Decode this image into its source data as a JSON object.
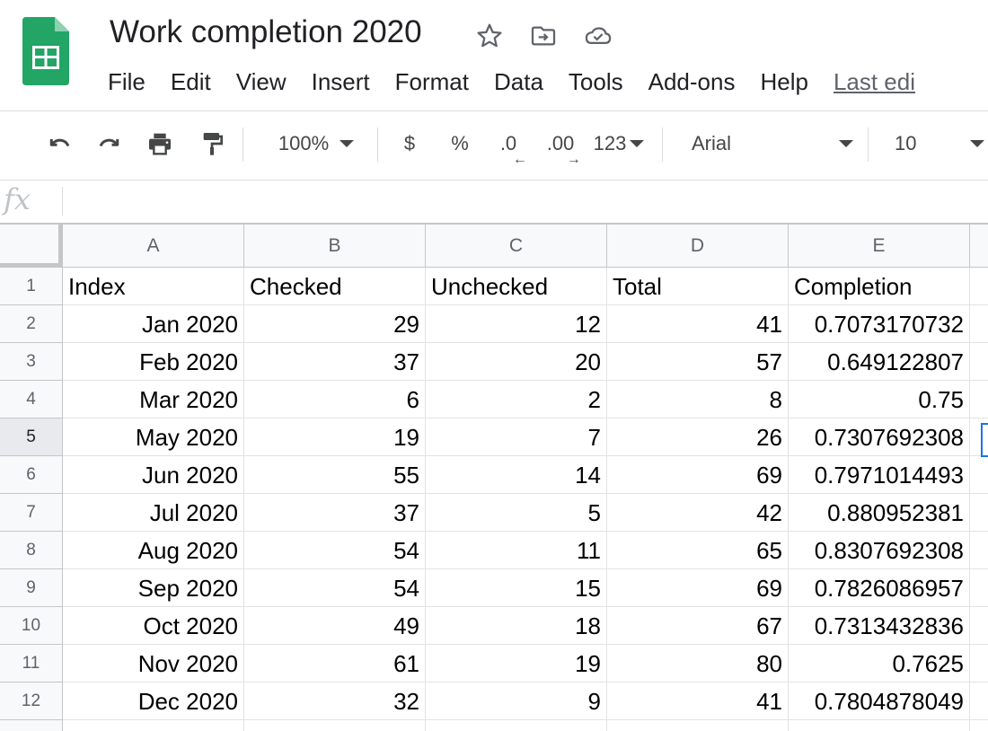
{
  "doc": {
    "title": "Work completion 2020",
    "icons": [
      "sheets-logo",
      "star-icon",
      "move-folder-icon",
      "cloud-saved-icon"
    ]
  },
  "menu": {
    "items": [
      "File",
      "Edit",
      "View",
      "Insert",
      "Format",
      "Data",
      "Tools",
      "Add-ons",
      "Help"
    ],
    "last_edit": "Last edi"
  },
  "toolbar": {
    "zoom": "100%",
    "currency": "$",
    "percent": "%",
    "decimal_decrease": ".0",
    "decimal_increase": ".00",
    "more_formats": "123",
    "font": "Arial",
    "font_size": "10",
    "icons": [
      "undo-icon",
      "redo-icon",
      "print-icon",
      "paint-format-icon"
    ]
  },
  "formula_bar": {
    "label": "fx",
    "value": ""
  },
  "sheet": {
    "columns": [
      "A",
      "B",
      "C",
      "D",
      "E"
    ],
    "row_numbers": [
      "1",
      "2",
      "3",
      "4",
      "5",
      "6",
      "7",
      "8",
      "9",
      "10",
      "11",
      "12"
    ],
    "header": [
      "Index",
      "Checked",
      "Unchecked",
      "Total",
      "Completion"
    ],
    "rows": [
      [
        "Jan 2020",
        "29",
        "12",
        "41",
        "0.7073170732"
      ],
      [
        "Feb 2020",
        "37",
        "20",
        "57",
        "0.649122807"
      ],
      [
        "Mar 2020",
        "6",
        "2",
        "8",
        "0.75"
      ],
      [
        "May 2020",
        "19",
        "7",
        "26",
        "0.7307692308"
      ],
      [
        "Jun 2020",
        "55",
        "14",
        "69",
        "0.7971014493"
      ],
      [
        "Jul 2020",
        "37",
        "5",
        "42",
        "0.880952381"
      ],
      [
        "Aug 2020",
        "54",
        "11",
        "65",
        "0.8307692308"
      ],
      [
        "Sep 2020",
        "54",
        "15",
        "69",
        "0.7826086957"
      ],
      [
        "Oct 2020",
        "49",
        "18",
        "67",
        "0.7313432836"
      ],
      [
        "Nov 2020",
        "61",
        "19",
        "80",
        "0.7625"
      ],
      [
        "Dec 2020",
        "32",
        "9",
        "41",
        "0.7804878049"
      ]
    ],
    "selected_row": "5",
    "colors": {
      "accent": "#1a73e8",
      "logo": "#23a566"
    }
  }
}
